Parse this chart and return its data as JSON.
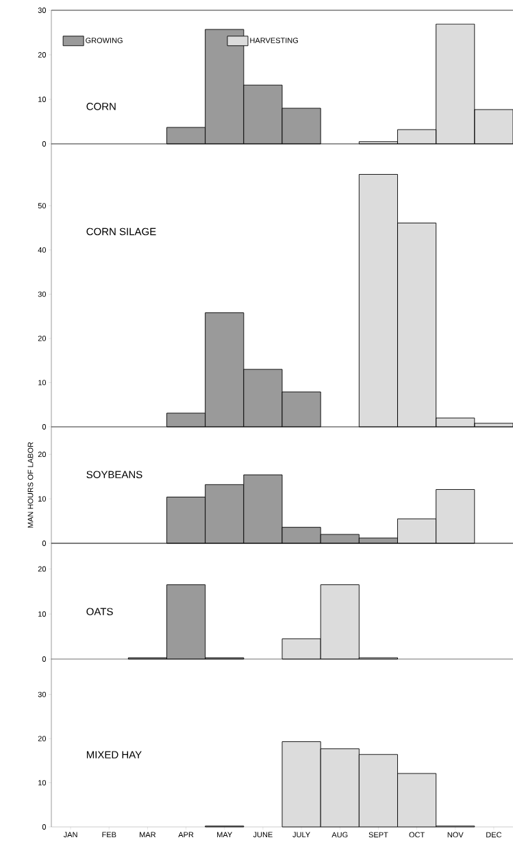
{
  "chart_data": [
    {
      "type": "bar",
      "title": "CORN",
      "categories": [
        null,
        null,
        null,
        null,
        null,
        null,
        null,
        null,
        null,
        null,
        null,
        null
      ],
      "tick_labels": "y",
      "legend": "top",
      "ylim": [
        0,
        30
      ],
      "yticks": [
        0,
        10,
        20,
        30
      ],
      "series": [
        {
          "name": "GROWING",
          "color": "#9a9a9a",
          "values": [
            null,
            null,
            null,
            3.7,
            25.7,
            13.2,
            8,
            null,
            null,
            null,
            null,
            null
          ]
        },
        {
          "name": "HARVESTING",
          "color": "#dcdcdc",
          "values": [
            null,
            null,
            null,
            null,
            null,
            null,
            null,
            null,
            0.5,
            3.2,
            26.9,
            7.7
          ]
        }
      ]
    },
    {
      "type": "bar",
      "title": "CORN  SILAGE",
      "categories": [
        null,
        null,
        null,
        null,
        null,
        null,
        null,
        null,
        null,
        null,
        null,
        null
      ],
      "tick_labels": "y",
      "ylim": [
        0,
        64
      ],
      "yticks": [
        0,
        10,
        20,
        30,
        40,
        50
      ],
      "series": [
        {
          "color": "#9a9a9a",
          "values": [
            null,
            null,
            null,
            3.1,
            25.8,
            13,
            7.9,
            null,
            null,
            null,
            null,
            null
          ]
        },
        {
          "color": "#dcdcdc",
          "values": [
            null,
            null,
            null,
            null,
            null,
            null,
            null,
            null,
            57.1,
            46.1,
            2,
            0.8
          ]
        }
      ]
    },
    {
      "type": "bar",
      "title": "SOYBEANS",
      "ylabel": "MAN HOURS OF LABOR",
      "categories": [
        null,
        null,
        null,
        null,
        null,
        null,
        null,
        null,
        null,
        null,
        null,
        null
      ],
      "tick_labels": "y",
      "ylim": [
        0,
        26.2
      ],
      "yticks": [
        0,
        10,
        20
      ],
      "series": [
        {
          "color": "#9a9a9a",
          "values": [
            null,
            null,
            null,
            10.4,
            13.2,
            15.4,
            3.6,
            2,
            1.2,
            null,
            null,
            null
          ]
        },
        {
          "color": "#dcdcdc",
          "values": [
            null,
            null,
            null,
            null,
            null,
            null,
            null,
            null,
            null,
            5.5,
            12.1,
            null
          ]
        }
      ]
    },
    {
      "type": "bar",
      "title": "OATS",
      "categories": [
        null,
        null,
        null,
        null,
        null,
        null,
        null,
        null,
        null,
        null,
        null,
        null
      ],
      "tick_labels": "y",
      "ylim": [
        0,
        25.7
      ],
      "yticks": [
        0,
        10,
        20
      ],
      "series": [
        {
          "color": "#9a9a9a",
          "values": [
            null,
            null,
            0.3,
            16.5,
            0.3,
            null,
            null,
            null,
            null,
            null,
            null,
            null
          ]
        },
        {
          "color": "#dcdcdc",
          "values": [
            null,
            null,
            null,
            null,
            null,
            null,
            4.5,
            16.5,
            0.3,
            null,
            null,
            null
          ]
        }
      ]
    },
    {
      "type": "bar",
      "title": "MIXED  HAY",
      "categories": [
        "JAN",
        "FEB",
        "MAR",
        "APR",
        "MAY",
        "JUNE",
        "JULY",
        "AUG",
        "SEPT",
        "OCT",
        "NOV",
        "DEC"
      ],
      "ylim": [
        0,
        38
      ],
      "yticks": [
        0,
        10,
        20,
        30
      ],
      "series": [
        {
          "color": "#9a9a9a",
          "values": [
            null,
            null,
            null,
            null,
            0.2,
            null,
            null,
            null,
            null,
            null,
            null,
            null
          ]
        },
        {
          "color": "#dcdcdc",
          "values": [
            null,
            null,
            null,
            null,
            null,
            null,
            19.3,
            17.7,
            16.4,
            12.1,
            0.2,
            null
          ]
        }
      ]
    }
  ]
}
